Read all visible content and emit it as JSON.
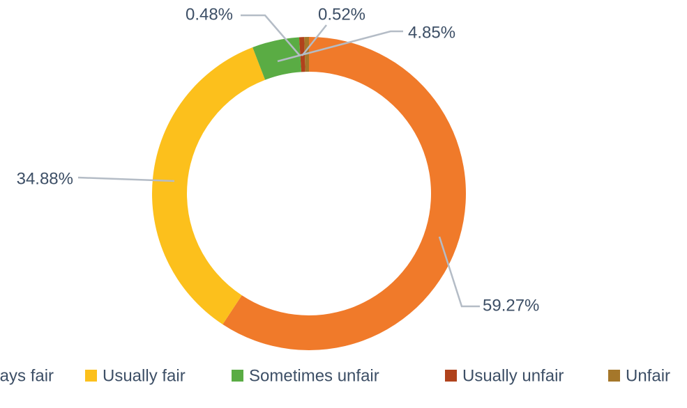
{
  "chart_data": {
    "type": "donut",
    "categories": [
      "Always fair",
      "Usually fair",
      "Sometimes unfair",
      "Usually unfair",
      "Unfair"
    ],
    "values": [
      59.27,
      34.88,
      4.85,
      0.52,
      0.48
    ],
    "value_labels": [
      "59.27%",
      "34.88%",
      "4.85%",
      "0.52%",
      "0.48%"
    ],
    "colors": [
      "#f07a2a",
      "#fcc01c",
      "#5aac44",
      "#b0421c",
      "#a5772a"
    ],
    "legend": "bottom"
  }
}
